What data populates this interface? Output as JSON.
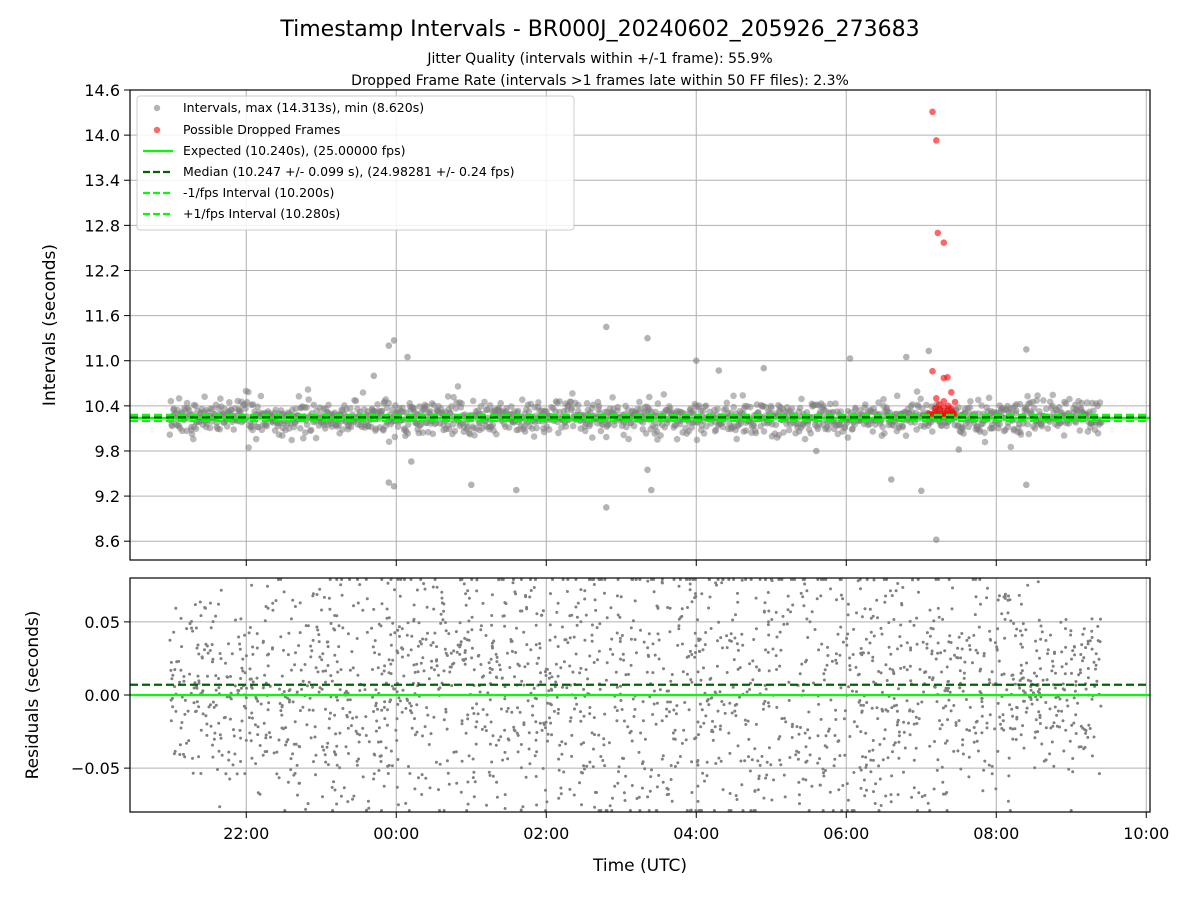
{
  "chart_data": [
    {
      "type": "scatter",
      "title": "Timestamp Intervals - BR000J_20240602_205926_273683",
      "subtitle_lines": [
        "Jitter Quality (intervals within +/-1 frame): 55.9%",
        "Dropped Frame Rate (intervals >1 frames late within 50 FF files): 2.3%"
      ],
      "ylabel": "Intervals (seconds)",
      "ylim": [
        8.35,
        14.6
      ],
      "y_ticks": [
        "8.6",
        "9.2",
        "9.8",
        "10.4",
        "11.0",
        "11.6",
        "12.2",
        "12.8",
        "13.4",
        "14.0",
        "14.6"
      ],
      "xlim_hours": [
        20.45,
        34.05
      ],
      "grid": true,
      "legend_position": "upper-left",
      "series": [
        {
          "name": "Intervals, max (14.313s), min (8.620s)",
          "kind": "scatter",
          "color": "#808080",
          "x_range_hours": [
            20.98,
            33.4
          ],
          "center": 10.245,
          "spread": 0.11,
          "outliers": [
            {
              "x": 23.9,
              "y": 11.2
            },
            {
              "x": 23.97,
              "y": 11.27
            },
            {
              "x": 23.9,
              "y": 9.38
            },
            {
              "x": 23.97,
              "y": 9.33
            },
            {
              "x": 24.2,
              "y": 9.66
            },
            {
              "x": 24.15,
              "y": 11.05
            },
            {
              "x": 25.6,
              "y": 9.28
            },
            {
              "x": 26.8,
              "y": 9.05
            },
            {
              "x": 26.8,
              "y": 11.45
            },
            {
              "x": 27.35,
              "y": 11.3
            },
            {
              "x": 27.4,
              "y": 9.28
            },
            {
              "x": 27.35,
              "y": 9.55
            },
            {
              "x": 28.0,
              "y": 11.0
            },
            {
              "x": 28.3,
              "y": 10.87
            },
            {
              "x": 28.9,
              "y": 10.9
            },
            {
              "x": 30.05,
              "y": 11.03
            },
            {
              "x": 30.6,
              "y": 9.42
            },
            {
              "x": 30.8,
              "y": 11.05
            },
            {
              "x": 31.0,
              "y": 9.27
            },
            {
              "x": 31.1,
              "y": 11.13
            },
            {
              "x": 31.2,
              "y": 8.62
            },
            {
              "x": 32.4,
              "y": 11.15
            },
            {
              "x": 32.4,
              "y": 9.35
            },
            {
              "x": 31.5,
              "y": 9.82
            },
            {
              "x": 25.0,
              "y": 9.35
            },
            {
              "x": 23.7,
              "y": 10.8
            },
            {
              "x": 29.6,
              "y": 9.8
            }
          ]
        },
        {
          "name": "Possible Dropped Frames",
          "kind": "scatter",
          "color": "#ff0000",
          "points": [
            {
              "x": 31.15,
              "y": 14.31
            },
            {
              "x": 31.2,
              "y": 13.93
            },
            {
              "x": 31.22,
              "y": 12.7
            },
            {
              "x": 31.3,
              "y": 12.57
            },
            {
              "x": 31.3,
              "y": 10.77
            },
            {
              "x": 31.35,
              "y": 10.78
            },
            {
              "x": 31.15,
              "y": 10.86
            },
            {
              "x": 31.4,
              "y": 10.58
            },
            {
              "x": 31.45,
              "y": 10.45
            },
            {
              "x": 31.2,
              "y": 10.5
            },
            {
              "x": 31.1,
              "y": 10.3
            },
            {
              "x": 31.15,
              "y": 10.28
            },
            {
              "x": 31.18,
              "y": 10.32
            },
            {
              "x": 31.22,
              "y": 10.27
            },
            {
              "x": 31.25,
              "y": 10.35
            },
            {
              "x": 31.28,
              "y": 10.29
            },
            {
              "x": 31.3,
              "y": 10.38
            },
            {
              "x": 31.32,
              "y": 10.3
            },
            {
              "x": 31.35,
              "y": 10.33
            },
            {
              "x": 31.38,
              "y": 10.28
            },
            {
              "x": 31.4,
              "y": 10.36
            },
            {
              "x": 31.42,
              "y": 10.31
            },
            {
              "x": 31.24,
              "y": 10.42
            },
            {
              "x": 31.36,
              "y": 10.4
            },
            {
              "x": 31.27,
              "y": 10.26
            },
            {
              "x": 31.33,
              "y": 10.27
            },
            {
              "x": 31.19,
              "y": 10.37
            },
            {
              "x": 31.44,
              "y": 10.29
            },
            {
              "x": 31.3,
              "y": 10.46
            },
            {
              "x": 31.21,
              "y": 10.29
            }
          ]
        },
        {
          "name": "Expected (10.240s), (25.00000 fps)",
          "kind": "hline",
          "y": 10.24,
          "color": "#00ff00",
          "dash": "solid"
        },
        {
          "name": "Median (10.247 +/- 0.099 s), (24.98281 +/- 0.24 fps)",
          "kind": "hline",
          "y": 10.247,
          "color": "#006400",
          "dash": "dashed"
        },
        {
          "name": "-1/fps Interval (10.200s)",
          "kind": "hline",
          "y": 10.2,
          "color": "#00ff00",
          "dash": "dashed"
        },
        {
          "name": "+1/fps Interval (10.280s)",
          "kind": "hline",
          "y": 10.28,
          "color": "#00ff00",
          "dash": "dashed"
        }
      ]
    },
    {
      "type": "scatter",
      "ylabel": "Residuals (seconds)",
      "xlabel": "Time (UTC)",
      "ylim": [
        -0.08,
        0.08
      ],
      "y_ticks": [
        {
          "value": 0.05,
          "label": "0.05"
        },
        {
          "value": 0.0,
          "label": "0.00"
        },
        {
          "value": -0.05,
          "label": "−0.05"
        }
      ],
      "xlim_hours": [
        20.45,
        34.05
      ],
      "x_ticks": [
        {
          "value": 22,
          "label": "22:00"
        },
        {
          "value": 24,
          "label": "00:00"
        },
        {
          "value": 26,
          "label": "02:00"
        },
        {
          "value": 28,
          "label": "04:00"
        },
        {
          "value": 30,
          "label": "06:00"
        },
        {
          "value": 32,
          "label": "08:00"
        },
        {
          "value": 34,
          "label": "10:00"
        }
      ],
      "grid": true,
      "series": [
        {
          "kind": "scatter",
          "color": "#808080",
          "x_range_hours": [
            20.98,
            33.4
          ],
          "center": 0.005,
          "spread": 0.06
        },
        {
          "kind": "hline",
          "y": 0.0,
          "color": "#00ff00",
          "dash": "solid"
        },
        {
          "kind": "hline",
          "y": 0.007,
          "color": "#006400",
          "dash": "dashed"
        }
      ]
    }
  ]
}
